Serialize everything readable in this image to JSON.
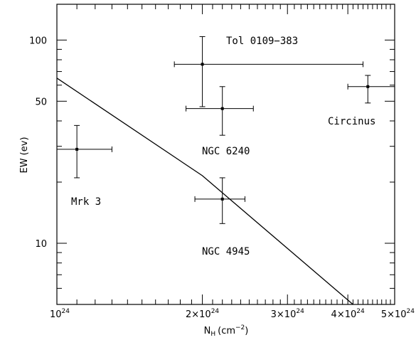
{
  "chart_data": {
    "type": "scatter",
    "xlabel": "N",
    "xlabel_sub": "H",
    "xlabel_unit": "(cm",
    "xlabel_sup": "−2",
    "xlabel_close": ")",
    "ylabel": "EW (ev)",
    "xscale": "log",
    "yscale": "log",
    "xlim": [
      1e+24,
      5e+24
    ],
    "ylim": [
      5,
      150
    ],
    "x_ticks": [
      {
        "value": 1e+24,
        "base": "10",
        "exp": "24"
      },
      {
        "value": 2e+24,
        "base": "2×10",
        "exp": "24"
      },
      {
        "value": 3e+24,
        "base": "3×10",
        "exp": "24"
      },
      {
        "value": 4e+24,
        "base": "4×10",
        "exp": "24"
      },
      {
        "value": 5e+24,
        "base": "5×10",
        "exp": "24"
      }
    ],
    "y_ticks": [
      {
        "value": 10,
        "label": "10"
      },
      {
        "value": 50,
        "label": "50"
      },
      {
        "value": 100,
        "label": "100"
      }
    ],
    "points": [
      {
        "name": "Mrk 3",
        "x": 1.1e+24,
        "y": 29,
        "xerr": [
          1e+24,
          1.3e+24
        ],
        "yerr": [
          21,
          38
        ]
      },
      {
        "name": "Tol 0109−383",
        "x": 2e+24,
        "y": 76,
        "xerr": [
          1.75e+24,
          4.3e+24
        ],
        "yerr": [
          47,
          104
        ]
      },
      {
        "name": "NGC 6240",
        "x": 2.2e+24,
        "y": 46,
        "xerr": [
          1.85e+24,
          2.55e+24
        ],
        "yerr": [
          34,
          59
        ]
      },
      {
        "name": "NGC 4945",
        "x": 2.2e+24,
        "y": 16.5,
        "xerr": [
          1.93e+24,
          2.45e+24
        ],
        "yerr": [
          12.5,
          21
        ]
      },
      {
        "name": "Circinus",
        "x": 4.4e+24,
        "y": 59,
        "xerr": [
          4e+24,
          5e+24
        ],
        "yerr": [
          49,
          67
        ]
      }
    ],
    "model_line": {
      "x": [
        1e+24,
        2e+24,
        4.1e+24
      ],
      "y": [
        65,
        21.5,
        5
      ]
    }
  }
}
